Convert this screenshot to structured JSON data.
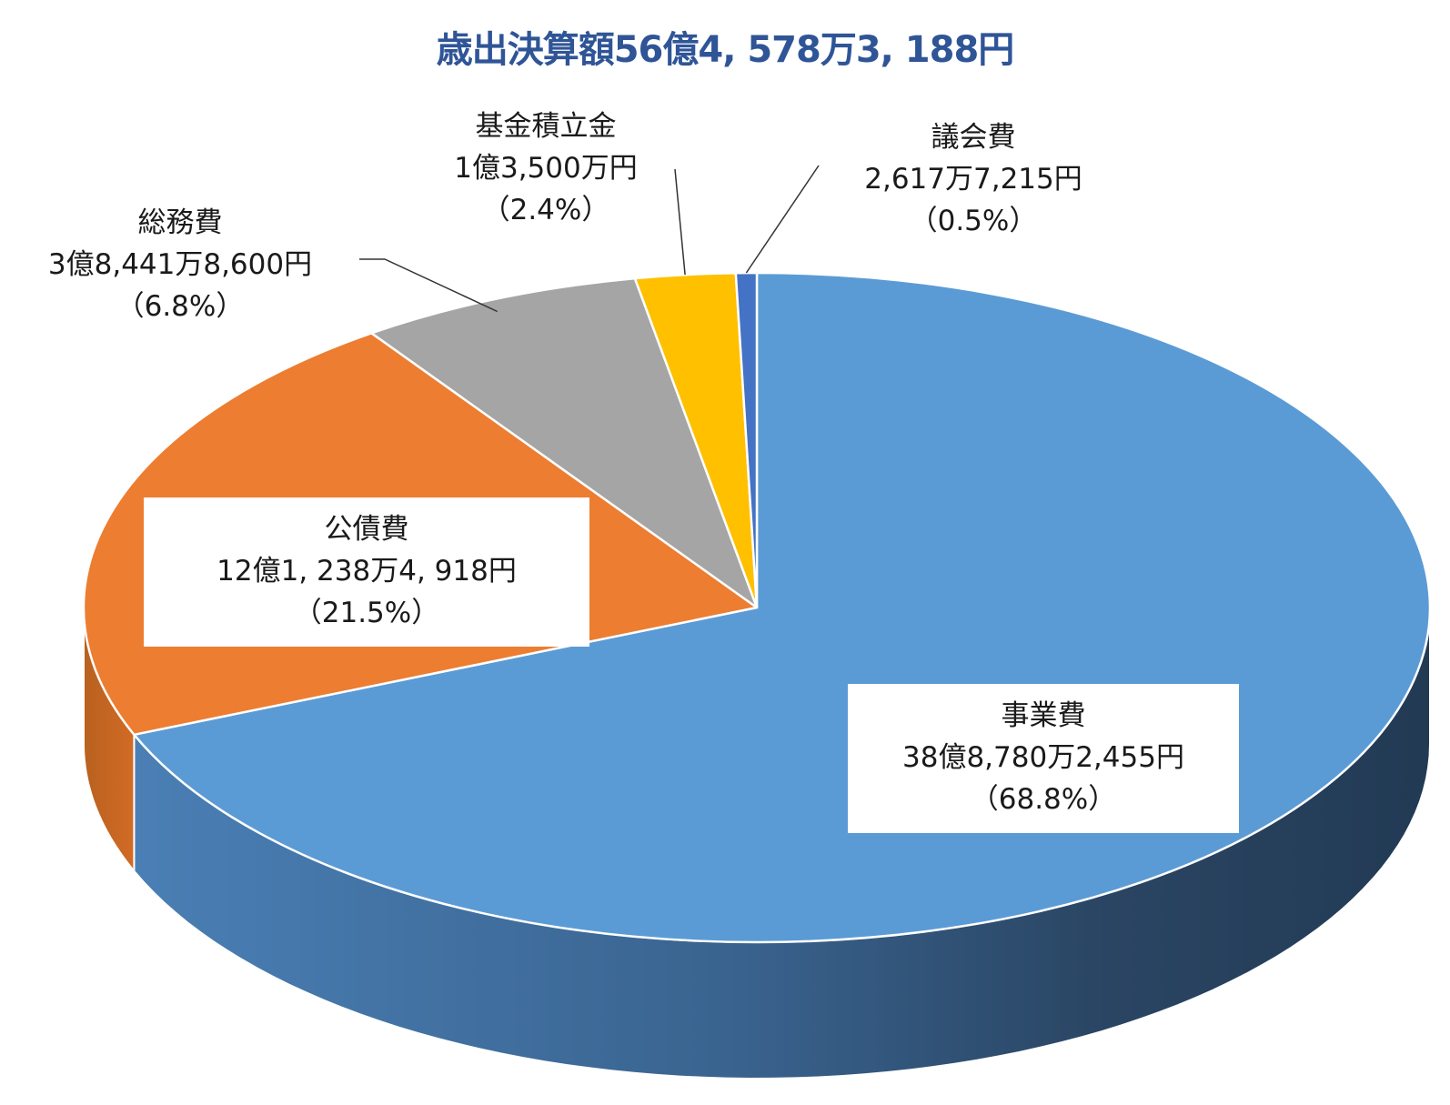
{
  "chart_data": {
    "type": "pie",
    "title": "歳出決算額56億4, 578万3, 188円",
    "colors": {
      "title": "#2f5597",
      "slices": [
        "#5b9bd5",
        "#ed7d31",
        "#a5a5a5",
        "#ffc000",
        "#4472c4"
      ]
    },
    "slices": [
      {
        "name": "事業費",
        "amount": "38億8,780万2,455円",
        "percent_label": "（68.8%）",
        "percent": 68.8
      },
      {
        "name": "公債費",
        "amount": "12億1, 238万4, 918円",
        "percent_label": "（21.5%）",
        "percent": 21.5
      },
      {
        "name": "総務費",
        "amount": "3億8,441万8,600円",
        "percent_label": "（6.8%）",
        "percent": 6.8
      },
      {
        "name": "基金積立金",
        "amount": "1億3,500万円",
        "percent_label": "（2.4%）",
        "percent": 2.4
      },
      {
        "name": "議会費",
        "amount": "2,617万7,215円",
        "percent_label": "（0.5%）",
        "percent": 0.5
      }
    ],
    "start_angle": "12 o'clock",
    "direction": "clockwise",
    "style": "3d",
    "legend": "none"
  }
}
